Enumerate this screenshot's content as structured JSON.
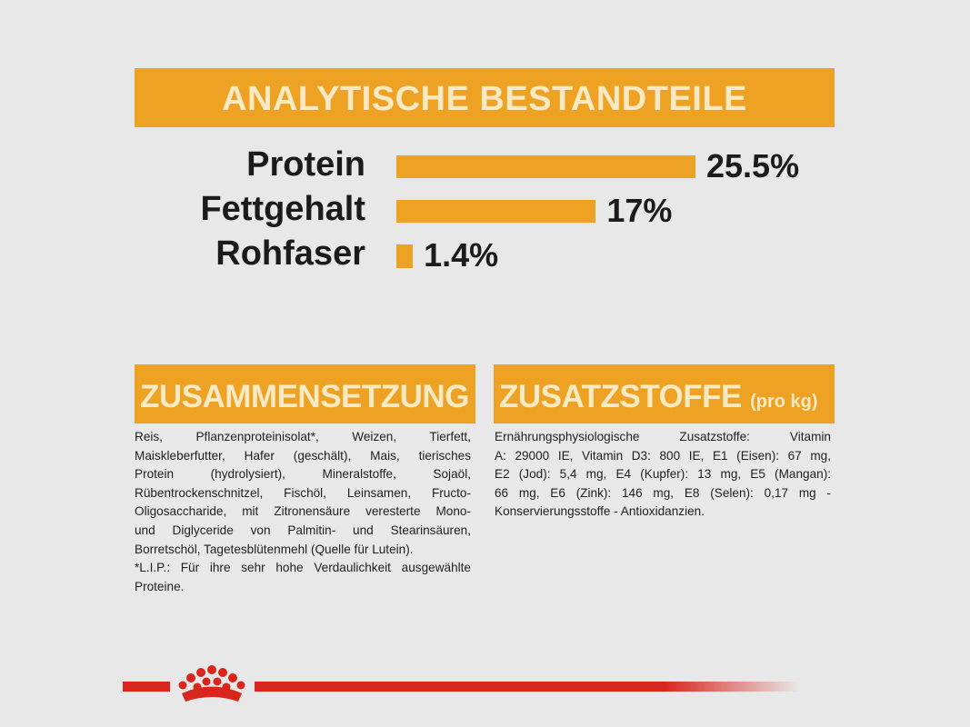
{
  "chart_data": {
    "type": "bar",
    "orientation": "horizontal",
    "title": "ANALYTISCHE BESTANDTEILE",
    "categories": [
      "Protein",
      "Fettgehalt",
      "Rohfaser"
    ],
    "values": [
      25.5,
      17,
      1.4
    ],
    "value_labels": [
      "25.5%",
      "17%",
      "1.4%"
    ],
    "color": "#eda223"
  },
  "sections": [
    {
      "title": "ZUSAMMENSETZUNG",
      "lines": [
        "Reis, Pflanzenproteinisolat*, Weizen, Tierfett,",
        "Maiskleberfutter, Hafer (geschält), Mais, tierisches",
        "Protein (hydrolysiert), Mineralstoffe, Sojaöl,",
        "Rübentrockenschnitzel, Fischöl, Leinsamen, Fructo-",
        "Oligosaccharide, mit Zitronensäure veresterte Mono-",
        "und Diglyceride von Palmitin- und Stearinsäuren,",
        "Borretschöl, Tagetesblütenmehl (Quelle für Lutein).",
        "*L.I.P.: Für ihre sehr hohe Verdaulichkeit ausgewählte",
        "Proteine."
      ]
    },
    {
      "title": "ZUSATZSTOFFE",
      "subtitle": "(pro kg)",
      "lines": [
        "Ernährungsphysiologische Zusatzstoffe: Vitamin",
        "A: 29000 IE, Vitamin D3: 800 IE, E1 (Eisen): 67 mg,",
        "E2 (Jod): 5,4 mg, E4 (Kupfer): 13 mg, E5 (Mangan):",
        "66 mg, E6 (Zink): 146 mg, E8 (Selen): 0,17 mg -",
        "Konservierungsstoffe - Antioxidanzien."
      ]
    }
  ]
}
